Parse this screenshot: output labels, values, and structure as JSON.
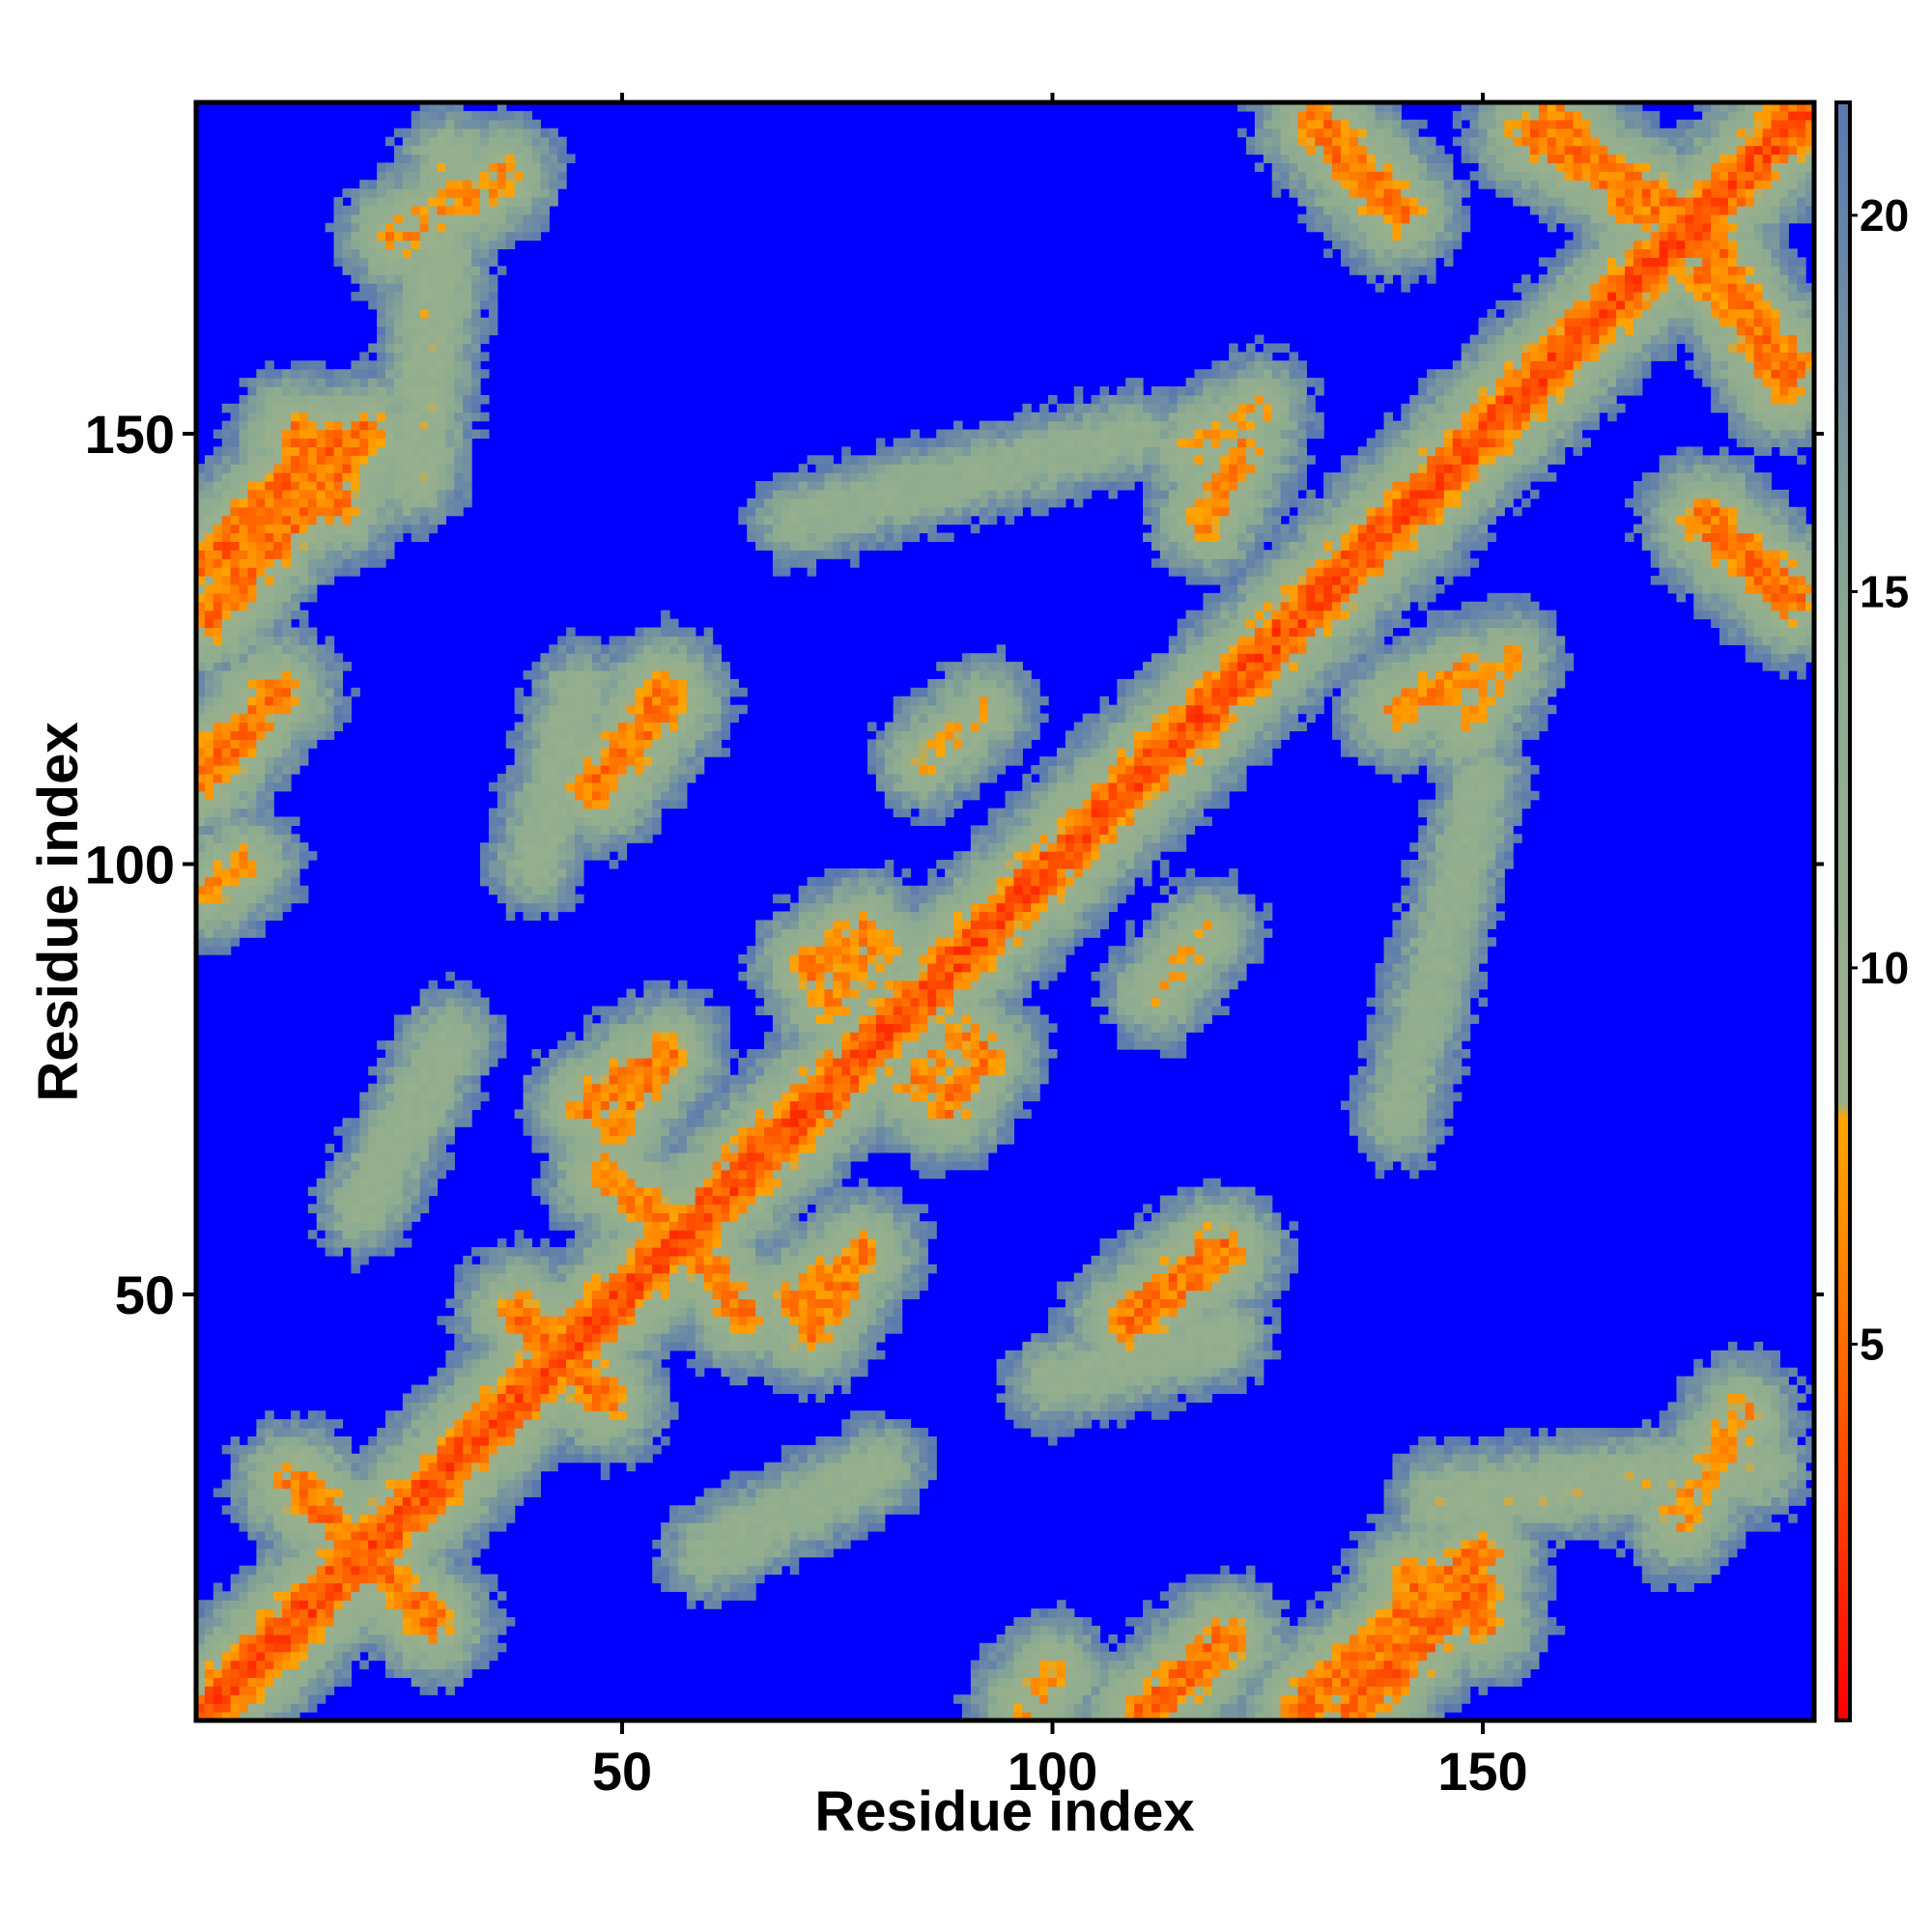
{
  "chart_data": {
    "type": "heatmap",
    "title": "",
    "xlabel": "Residue index",
    "ylabel": "Residue index",
    "n_residues": 188,
    "xlim": [
      1,
      188
    ],
    "ylim": [
      1,
      188
    ],
    "x_ticks": [
      50,
      100,
      150
    ],
    "y_ticks": [
      50,
      100,
      150
    ],
    "x_tick_labels": [
      "50",
      "100",
      "150"
    ],
    "y_tick_labels": [
      "50",
      "100",
      "150"
    ],
    "colorbar": {
      "ticks": [
        5,
        10,
        15,
        20
      ],
      "tick_labels": [
        "5",
        "10",
        "15",
        "20"
      ],
      "range": [
        0,
        21.5
      ],
      "stops": [
        {
          "value": 0,
          "color": "#ff0000"
        },
        {
          "value": 6.5,
          "color": "#ff8c00"
        },
        {
          "value": 8.0,
          "color": "#ffa500"
        },
        {
          "value": 8.2,
          "color": "#9ab08c"
        },
        {
          "value": 14,
          "color": "#8eac90"
        },
        {
          "value": 21.5,
          "color": "#5a78b0"
        }
      ],
      "out_of_range_color": "#0000ff"
    },
    "cutoff_value": 21.5,
    "contact_segments": [
      {
        "x0": 1,
        "y0": 1,
        "x1": 188,
        "y1": 188,
        "width": 2.0,
        "min": 3.8
      },
      {
        "x0": 2,
        "y0": 135,
        "x1": 16,
        "y1": 149,
        "width": 2.5,
        "min": 5.0
      },
      {
        "x0": 2,
        "y0": 112,
        "x1": 10,
        "y1": 120,
        "width": 2.0,
        "min": 5.5
      },
      {
        "x0": 2,
        "y0": 97,
        "x1": 6,
        "y1": 100,
        "width": 2.0,
        "min": 7.0
      },
      {
        "x0": 14,
        "y0": 142,
        "x1": 20,
        "y1": 150,
        "width": 2.0,
        "min": 5.5
      },
      {
        "x0": 24,
        "y0": 173,
        "x1": 36,
        "y1": 180,
        "width": 2.5,
        "min": 7.0
      },
      {
        "x0": 10,
        "y0": 10,
        "x1": 30,
        "y1": 30,
        "width": 3.0,
        "min": 6.5
      },
      {
        "x0": 22,
        "y0": 18,
        "x1": 12,
        "y1": 28,
        "width": 2.0,
        "min": 5.5
      },
      {
        "x0": 40,
        "y0": 46,
        "x1": 48,
        "y1": 38,
        "width": 2.0,
        "min": 5.5
      },
      {
        "x0": 48,
        "y0": 64,
        "x1": 56,
        "y1": 58,
        "width": 2.0,
        "min": 6.0
      },
      {
        "x0": 46,
        "y0": 72,
        "x1": 52,
        "y1": 76,
        "width": 2.0,
        "min": 6.0
      },
      {
        "x0": 47,
        "y0": 109,
        "x1": 55,
        "y1": 119,
        "width": 2.5,
        "min": 5.5
      },
      {
        "x0": 70,
        "y0": 49,
        "x1": 78,
        "y1": 55,
        "width": 2.0,
        "min": 6.0
      },
      {
        "x0": 72,
        "y0": 88,
        "x1": 78,
        "y1": 92,
        "width": 2.0,
        "min": 6.0
      },
      {
        "x0": 84,
        "y0": 74,
        "x1": 90,
        "y1": 80,
        "width": 2.0,
        "min": 6.5
      },
      {
        "x0": 85,
        "y0": 112,
        "x1": 92,
        "y1": 118,
        "width": 2.0,
        "min": 8.5
      },
      {
        "x0": 110,
        "y0": 48,
        "x1": 120,
        "y1": 55,
        "width": 2.0,
        "min": 5.5
      },
      {
        "x0": 110,
        "y0": 1,
        "x1": 118,
        "y1": 8,
        "width": 2.0,
        "min": 5.5
      },
      {
        "x0": 129,
        "y0": 2,
        "x1": 143,
        "y1": 14,
        "width": 2.5,
        "min": 5.5
      },
      {
        "x0": 142,
        "y0": 17,
        "x1": 150,
        "y1": 12,
        "width": 2.0,
        "min": 5.5
      },
      {
        "x0": 132,
        "y0": 185,
        "x1": 140,
        "y1": 176,
        "width": 2.0,
        "min": 5.5
      },
      {
        "x0": 156,
        "y0": 185,
        "x1": 172,
        "y1": 176,
        "width": 2.5,
        "min": 5.5
      },
      {
        "x0": 176,
        "y0": 168,
        "x1": 187,
        "y1": 158,
        "width": 2.0,
        "min": 6.0
      },
      {
        "x0": 176,
        "y0": 140,
        "x1": 186,
        "y1": 131,
        "width": 2.5,
        "min": 5.5
      },
      {
        "x0": 140,
        "y0": 118,
        "x1": 148,
        "y1": 122,
        "width": 2.0,
        "min": 6.5
      },
      {
        "x0": 116,
        "y0": 148,
        "x1": 124,
        "y1": 153,
        "width": 2.0,
        "min": 8.0
      },
      {
        "x0": 145,
        "y0": 26,
        "x1": 182,
        "y1": 30,
        "width": 3.0,
        "min": 10.0
      },
      {
        "x0": 100,
        "y0": 40,
        "x1": 120,
        "y1": 45,
        "width": 3.0,
        "min": 11.0
      },
      {
        "x0": 60,
        "y0": 20,
        "x1": 80,
        "y1": 30,
        "width": 3.0,
        "min": 11.0
      },
      {
        "x0": 70,
        "y0": 140,
        "x1": 110,
        "y1": 150,
        "width": 3.0,
        "min": 12.0
      }
    ]
  }
}
